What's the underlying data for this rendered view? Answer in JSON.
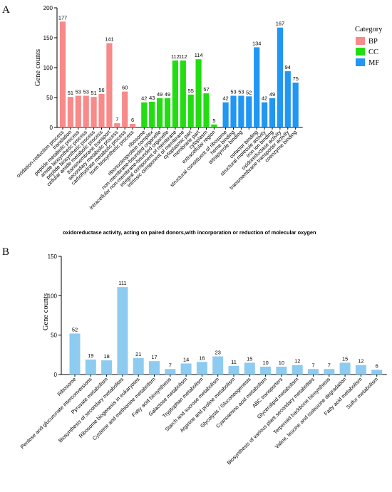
{
  "chart_data": [
    {
      "panel": "A",
      "type": "bar",
      "ylabel": "Gene counts",
      "ylim": [
        0,
        200
      ],
      "yticks": [
        0,
        50,
        100,
        150,
        200
      ],
      "legend": {
        "title": "Category",
        "placement": "right",
        "entries": [
          {
            "name": "BP",
            "color": "#f88a8a"
          },
          {
            "name": "CC",
            "color": "#22dd11"
          },
          {
            "name": "MF",
            "color": "#2196f3"
          }
        ]
      },
      "groups": [
        {
          "name": "BP",
          "color": "#f88a8a",
          "categories": [
            "oxidation-reduction process",
            "translation",
            "peptide metabolic process",
            "amide biosynthetic process",
            "peptide biosynthetic process",
            "cellular amide metabolic process",
            "transmembrane transport",
            "secondary metabolic process",
            "carbohydrate metabolic process",
            "toxin biosynthetic process"
          ],
          "values": [
            177,
            51,
            53,
            53,
            51,
            56,
            141,
            7,
            60,
            6
          ]
        },
        {
          "name": "CC",
          "color": "#22dd11",
          "categories": [
            "ribosome",
            "ribonucleoprotein complex",
            "non-membrane-bounded organelle",
            "intracellular non-membrane-bounded organelle",
            "integral component of membrane",
            "intrinsic component of membrane",
            "cytoplasmic part",
            "membrane part",
            "cytoplasm",
            "extracellular region"
          ],
          "values": [
            42,
            43,
            49,
            49,
            112,
            112,
            55,
            114,
            57,
            5
          ]
        },
        {
          "name": "MF",
          "color": "#2196f3",
          "categories": [
            "structural constituent of ribosome",
            "heme binding",
            "tetrapyrrole binding",
            "oxidoreductase activity, acting on paired donors,with incorporation or reduction of molecular oxygen",
            "cofactor binding",
            "structural molecule activity",
            "iron ion binding",
            "oxidoreductase activity",
            "transmembrane transporter activity",
            "coenzyme binding"
          ],
          "values": [
            42,
            53,
            53,
            52,
            134,
            42,
            49,
            167,
            94,
            75
          ]
        }
      ],
      "note": "oxidoreductase activity, acting on paired donors,with incorporation or reduction of molecular oxygen"
    },
    {
      "panel": "B",
      "type": "bar",
      "ylabel": "Gene counts",
      "ylim": [
        0,
        150
      ],
      "yticks": [
        0,
        50,
        100,
        150
      ],
      "color": "#8ecbf0",
      "categories": [
        "Ribosome",
        "Pentose and glucuronate interconversions",
        "Pyruvate metabolism",
        "Biosynthesis of secondary metabolites",
        "Ribosome biogenesis in eukaryotes",
        "Cysteine and methionine metabolism",
        "Fatty acid biosynthesis",
        "Galactose metabolism",
        "Tryptophan metabolism",
        "Starch and sucrose metabolism",
        "Arginine and proline metabolism",
        "Glycolysis / Gluconeogenesis",
        "Cyanoamino acid metabolism",
        "ABC transporters",
        "Glycerolipid metabolism",
        "Biosynthesis of various plant secondary metabolites",
        "Terpenoid backbone biosynthesis",
        "Valine, leucine and isoleucine degradation",
        "Fatty acid metabolism",
        "Sulfur metabolism"
      ],
      "values": [
        52,
        19,
        18,
        111,
        21,
        17,
        7,
        14,
        16,
        23,
        11,
        15,
        10,
        10,
        12,
        7,
        7,
        15,
        12,
        6
      ]
    }
  ]
}
